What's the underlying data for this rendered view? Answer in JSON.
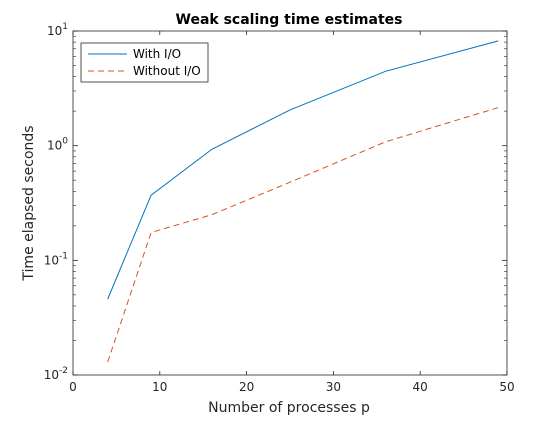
{
  "chart_data": {
    "type": "line",
    "title": "Weak scaling time estimates",
    "xlabel": "Number of processes p",
    "ylabel": "Time elapsed seconds",
    "xlim": [
      0,
      50
    ],
    "ylim": [
      0.01,
      10
    ],
    "yscale": "log",
    "grid": false,
    "legend_position": "top-left",
    "x_ticks": [
      "0",
      "10",
      "20",
      "30",
      "40",
      "50"
    ],
    "y_ticks": [
      {
        "base": "10",
        "exp": "-2"
      },
      {
        "base": "10",
        "exp": "-1"
      },
      {
        "base": "10",
        "exp": "0"
      },
      {
        "base": "10",
        "exp": "1"
      }
    ],
    "x": [
      4,
      9,
      16,
      25,
      36,
      49
    ],
    "series": [
      {
        "name": "With I/O",
        "values": [
          0.046,
          0.37,
          0.93,
          2.05,
          4.45,
          8.2
        ],
        "color": "#0072BD",
        "style": "solid"
      },
      {
        "name": "Without I/O",
        "values": [
          0.013,
          0.175,
          0.25,
          0.48,
          1.08,
          2.15
        ],
        "color": "#D95319",
        "style": "dashed"
      }
    ]
  }
}
